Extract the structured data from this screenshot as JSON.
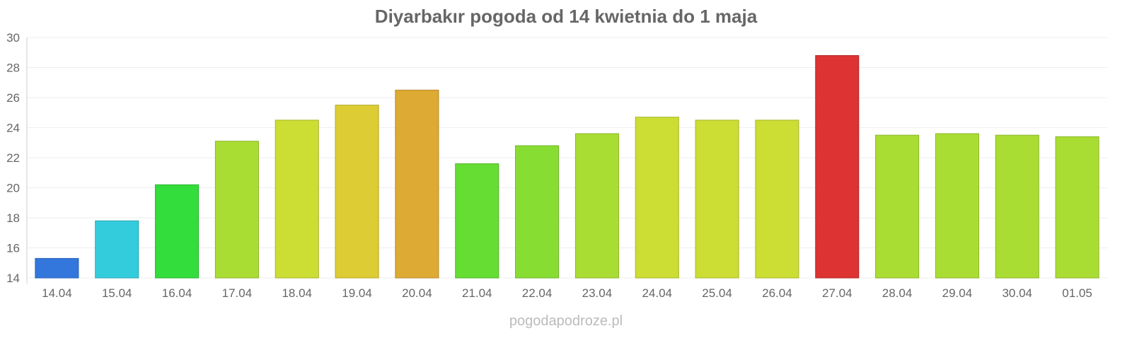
{
  "chart_data": {
    "type": "bar",
    "title": "Diyarbakır pogoda od 14 kwietnia do 1 maja",
    "xlabel": "",
    "ylabel": "",
    "ylim": [
      14,
      30
    ],
    "yticks": [
      14,
      16,
      18,
      20,
      22,
      24,
      26,
      28,
      30
    ],
    "grid": true,
    "legend": "none",
    "categories": [
      "14.04",
      "15.04",
      "16.04",
      "17.04",
      "18.04",
      "19.04",
      "20.04",
      "21.04",
      "22.04",
      "23.04",
      "24.04",
      "25.04",
      "26.04",
      "27.04",
      "28.04",
      "29.04",
      "30.04",
      "01.05"
    ],
    "values": [
      15.3,
      17.8,
      20.2,
      23.1,
      24.5,
      25.5,
      26.5,
      21.6,
      22.8,
      23.6,
      24.7,
      24.5,
      24.5,
      28.8,
      23.5,
      23.6,
      23.5,
      23.4
    ],
    "bar_colors": [
      "#3377dd",
      "#33ccdd",
      "#33dd3b",
      "#aadd33",
      "#ccdd33",
      "#ddcc33",
      "#ddaa33",
      "#66dd33",
      "#88dd33",
      "#aadd33",
      "#ccdd33",
      "#ccdd33",
      "#ccdd33",
      "#dd3333",
      "#aadd33",
      "#aadd33",
      "#aadd33",
      "#aadd33"
    ]
  },
  "footer": {
    "source": "pogodapodroze.pl"
  }
}
